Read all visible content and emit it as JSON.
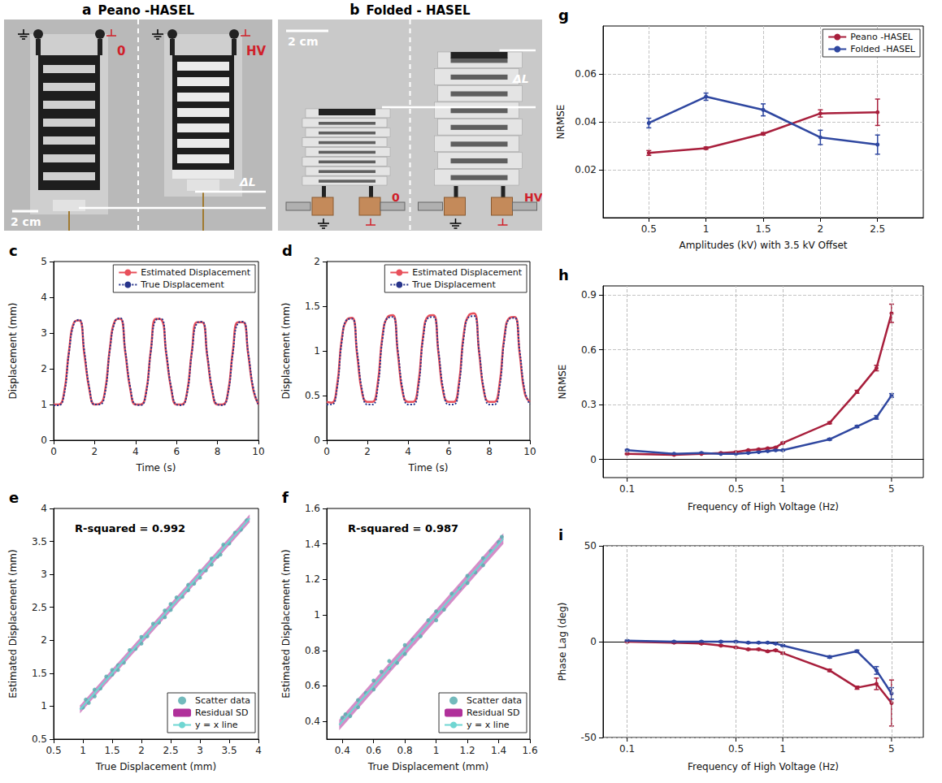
{
  "photos": [
    {
      "letter": "a",
      "title": "Peano -HASEL",
      "type": "peano",
      "low_voltage": "0",
      "high_voltage": "HV",
      "displacement": "ΔL",
      "scale_bar": "2 cm"
    },
    {
      "letter": "b",
      "title": "Folded - HASEL",
      "type": "folded",
      "low_voltage": "0",
      "high_voltage": "HV",
      "displacement": "ΔL",
      "scale_bar": "2 cm"
    }
  ],
  "chart_data": [
    {
      "letter": "c",
      "type": "line",
      "x_label": "Time (s)",
      "y_label": "Displacement (mm)",
      "legend": "upper right",
      "grid": false,
      "x": [
        0,
        0.25,
        0.5,
        0.75,
        1,
        1.25,
        1.5,
        1.75,
        2,
        2.25,
        2.5,
        2.75,
        3,
        3.25,
        3.5,
        3.75,
        4,
        4.25,
        4.5,
        4.75,
        5,
        5.25,
        5.5,
        5.75,
        6,
        6.25,
        6.5,
        6.75,
        7,
        7.25,
        7.5,
        7.75,
        8,
        8.25,
        8.5,
        8.75,
        9,
        9.25,
        9.5,
        9.75,
        10
      ],
      "xlim": [
        0,
        10
      ],
      "xticks": [
        0,
        2,
        4,
        6,
        8,
        10
      ],
      "ylim": [
        0,
        5
      ],
      "yticks": [
        0,
        1,
        2,
        3,
        4,
        5
      ],
      "series": [
        {
          "name": "Estimated Displacement",
          "color": "#e8505b",
          "line_style": "solid",
          "values": [
            1.0,
            1.0,
            1.3,
            2.5,
            3.3,
            3.35,
            2.4,
            1.4,
            1.0,
            1.02,
            1.35,
            2.6,
            3.35,
            3.4,
            2.45,
            1.4,
            1.0,
            1.0,
            1.3,
            2.55,
            3.4,
            3.38,
            2.4,
            1.4,
            1.0,
            1.0,
            1.3,
            2.5,
            3.3,
            3.3,
            2.35,
            1.35,
            1.0,
            1.0,
            1.3,
            2.5,
            3.3,
            3.3,
            2.4,
            1.4,
            1.0
          ]
        },
        {
          "name": "True Displacement",
          "color": "#27348b",
          "line_style": "dotted",
          "values": [
            0.98,
            0.98,
            1.25,
            2.45,
            3.28,
            3.37,
            2.48,
            1.45,
            1.0,
            1.0,
            1.3,
            2.55,
            3.33,
            3.42,
            2.5,
            1.45,
            1.0,
            0.98,
            1.27,
            2.5,
            3.37,
            3.4,
            2.45,
            1.45,
            1.0,
            0.98,
            1.27,
            2.45,
            3.28,
            3.32,
            2.4,
            1.4,
            1.0,
            0.98,
            1.27,
            2.45,
            3.28,
            3.32,
            2.45,
            1.45,
            0.98
          ]
        }
      ]
    },
    {
      "letter": "d",
      "type": "line",
      "x_label": "Time (s)",
      "y_label": "Displacement (mm)",
      "legend": "upper right",
      "grid": false,
      "x": [
        0,
        0.25,
        0.5,
        0.75,
        1,
        1.25,
        1.5,
        1.75,
        2,
        2.25,
        2.5,
        2.75,
        3,
        3.25,
        3.5,
        3.75,
        4,
        4.25,
        4.5,
        4.75,
        5,
        5.25,
        5.5,
        5.75,
        6,
        6.25,
        6.5,
        6.75,
        7,
        7.25,
        7.5,
        7.75,
        8,
        8.25,
        8.5,
        8.75,
        9,
        9.25,
        9.5,
        9.75,
        10
      ],
      "xlim": [
        0,
        10
      ],
      "xticks": [
        0,
        2,
        4,
        6,
        8,
        10
      ],
      "ylim": [
        0,
        2
      ],
      "yticks": [
        0,
        0.5,
        1,
        1.5,
        2
      ],
      "series": [
        {
          "name": "Estimated Displacement",
          "color": "#e8505b",
          "line_style": "solid",
          "values": [
            0.43,
            0.42,
            0.6,
            1.15,
            1.35,
            1.37,
            0.95,
            0.52,
            0.43,
            0.43,
            0.62,
            1.18,
            1.38,
            1.4,
            0.97,
            0.52,
            0.43,
            0.43,
            0.62,
            1.18,
            1.39,
            1.4,
            0.97,
            0.52,
            0.43,
            0.43,
            0.63,
            1.2,
            1.4,
            1.42,
            0.98,
            0.53,
            0.43,
            0.43,
            0.62,
            1.17,
            1.37,
            1.38,
            0.96,
            0.52,
            0.43
          ]
        },
        {
          "name": "True Displacement",
          "color": "#27348b",
          "line_style": "dotted",
          "values": [
            0.4,
            0.4,
            0.57,
            1.12,
            1.35,
            1.36,
            0.98,
            0.55,
            0.4,
            0.4,
            0.58,
            1.14,
            1.37,
            1.38,
            1.0,
            0.55,
            0.4,
            0.4,
            0.58,
            1.15,
            1.37,
            1.38,
            1.0,
            0.55,
            0.4,
            0.4,
            0.59,
            1.16,
            1.38,
            1.39,
            1.0,
            0.55,
            0.4,
            0.4,
            0.58,
            1.14,
            1.36,
            1.37,
            0.99,
            0.55,
            0.4
          ]
        }
      ]
    },
    {
      "letter": "e",
      "type": "scatter",
      "x_label": "True Displacement (mm)",
      "y_label": "Estimated Displacement (mm)",
      "annotation": "R-squared = 0.992",
      "legend": "lower right",
      "grid": false,
      "xlim": [
        0.5,
        4
      ],
      "xticks": [
        0.5,
        1,
        1.5,
        2,
        2.5,
        3,
        3.5,
        4
      ],
      "ylim": [
        0.5,
        4
      ],
      "yticks": [
        0.5,
        1,
        1.5,
        2,
        2.5,
        3,
        3.5,
        4
      ],
      "series": [
        {
          "name": "Scatter data",
          "type": "scatter",
          "color": "#5aaeb0",
          "marker": "circle",
          "x": [
            1.0,
            1.05,
            1.1,
            1.2,
            1.3,
            1.4,
            1.5,
            1.6,
            1.7,
            1.8,
            1.9,
            2.0,
            2.1,
            2.2,
            2.3,
            2.4,
            2.5,
            2.6,
            2.7,
            2.8,
            2.9,
            3.0,
            3.1,
            3.2,
            3.3,
            3.4,
            3.5,
            3.6,
            3.7,
            3.8,
            1.2,
            1.6,
            2.0,
            2.4,
            2.8,
            3.2,
            3.35,
            1.5,
            2.5,
            3.0
          ],
          "values": [
            0.98,
            1.1,
            1.05,
            1.25,
            1.27,
            1.45,
            1.48,
            1.62,
            1.66,
            1.85,
            1.87,
            2.05,
            2.06,
            2.25,
            2.27,
            2.45,
            2.46,
            2.65,
            2.66,
            2.84,
            2.86,
            3.05,
            3.06,
            3.24,
            3.27,
            3.45,
            3.47,
            3.63,
            3.68,
            3.82,
            1.15,
            1.55,
            1.95,
            2.35,
            2.76,
            3.15,
            3.3,
            1.55,
            2.55,
            2.95
          ]
        },
        {
          "name": "Residual SD",
          "type": "band",
          "color": "#b0309a",
          "x": [
            0.95,
            3.85
          ],
          "lower": [
            0.89,
            3.79
          ],
          "upper": [
            1.01,
            3.91
          ]
        },
        {
          "name": "y = x line",
          "type": "line",
          "color": "#6fd6d2",
          "line_style": "solid",
          "x": [
            0.95,
            3.85
          ],
          "values": [
            0.95,
            3.85
          ]
        }
      ]
    },
    {
      "letter": "f",
      "type": "scatter",
      "x_label": "True Displacement (mm)",
      "y_label": "Estimated Displacement (mm)",
      "annotation": "R-squared = 0.987",
      "legend": "lower right",
      "grid": false,
      "xlim": [
        0.3,
        1.6
      ],
      "xticks": [
        0.4,
        0.6,
        0.8,
        1,
        1.2,
        1.4,
        1.6
      ],
      "ylim": [
        0.3,
        1.6
      ],
      "yticks": [
        0.4,
        0.6,
        0.8,
        1,
        1.2,
        1.4,
        1.6
      ],
      "series": [
        {
          "name": "Scatter data",
          "type": "scatter",
          "color": "#5aaeb0",
          "marker": "circle",
          "x": [
            0.4,
            0.42,
            0.45,
            0.5,
            0.55,
            0.6,
            0.65,
            0.7,
            0.75,
            0.8,
            0.85,
            0.9,
            0.95,
            1.0,
            1.05,
            1.1,
            1.15,
            1.2,
            1.25,
            1.3,
            1.35,
            1.4,
            1.42,
            0.6,
            0.8,
            1.0,
            1.2,
            1.3,
            0.7,
            0.5
          ],
          "values": [
            0.42,
            0.44,
            0.43,
            0.52,
            0.56,
            0.58,
            0.68,
            0.7,
            0.73,
            0.83,
            0.86,
            0.88,
            0.97,
            1.02,
            1.03,
            1.12,
            1.15,
            1.22,
            1.24,
            1.32,
            1.36,
            1.41,
            1.44,
            0.63,
            0.78,
            0.97,
            1.18,
            1.28,
            0.74,
            0.48
          ]
        },
        {
          "name": "Residual SD",
          "type": "band",
          "color": "#b0309a",
          "x": [
            0.38,
            1.43
          ],
          "lower": [
            0.35,
            1.4
          ],
          "upper": [
            0.41,
            1.46
          ]
        },
        {
          "name": "y = x line",
          "type": "line",
          "color": "#6fd6d2",
          "line_style": "solid",
          "x": [
            0.38,
            1.43
          ],
          "values": [
            0.38,
            1.43
          ]
        }
      ]
    },
    {
      "letter": "g",
      "type": "line",
      "x_label": "Amplitudes (kV) with 3.5 kV Offset",
      "y_label": "NRMSE",
      "legend": "upper right",
      "grid": true,
      "x": [
        0.5,
        1,
        1.5,
        2,
        2.5
      ],
      "xlim": [
        0.1,
        2.9
      ],
      "xticks": [
        0.5,
        1,
        1.5,
        2,
        2.5
      ],
      "ylim": [
        0,
        0.08
      ],
      "yticks": [
        0.02,
        0.04,
        0.06
      ],
      "series": [
        {
          "name": "Peano -HASEL",
          "color": "#a81f3c",
          "marker": "circle",
          "values": [
            0.027,
            0.029,
            0.035,
            0.0435,
            0.044
          ],
          "errors": [
            0.001,
            0.0005,
            0.0005,
            0.0015,
            0.0055
          ]
        },
        {
          "name": "Folded -HASEL",
          "color": "#2f47a0",
          "marker": "circle",
          "values": [
            0.0395,
            0.0505,
            0.045,
            0.0335,
            0.0305
          ],
          "errors": [
            0.002,
            0.0015,
            0.0025,
            0.003,
            0.004
          ]
        }
      ]
    },
    {
      "letter": "h",
      "type": "line",
      "log": "x",
      "x_label": "Frequency of High Voltage (Hz)",
      "y_label": "NRMSE",
      "grid": true,
      "x": [
        0.1,
        0.2,
        0.3,
        0.4,
        0.5,
        0.6,
        0.7,
        0.8,
        0.9,
        1,
        2,
        3,
        4,
        5
      ],
      "xlim": [
        0.07,
        8
      ],
      "xticks": [
        0.1,
        0.5,
        1,
        5
      ],
      "ylim": [
        -0.1,
        0.95
      ],
      "yticks": [
        0,
        0.3,
        0.6,
        0.9
      ],
      "series": [
        {
          "name": "Peano -HASEL",
          "color": "#a81f3c",
          "marker": "circle",
          "values": [
            0.03,
            0.025,
            0.03,
            0.035,
            0.04,
            0.05,
            0.055,
            0.06,
            0.065,
            0.09,
            0.2,
            0.37,
            0.5,
            0.8
          ],
          "errors": [
            0.003,
            0.002,
            0.002,
            0.002,
            0.002,
            0.003,
            0.003,
            0.003,
            0.003,
            0.004,
            0.005,
            0.008,
            0.015,
            0.05
          ]
        },
        {
          "name": "Folded -HASEL",
          "color": "#2f47a0",
          "marker": "circle",
          "values": [
            0.05,
            0.03,
            0.035,
            0.03,
            0.03,
            0.035,
            0.04,
            0.045,
            0.05,
            0.05,
            0.11,
            0.18,
            0.23,
            0.35
          ],
          "errors": [
            0.004,
            0.002,
            0.002,
            0.002,
            0.002,
            0.002,
            0.002,
            0.003,
            0.003,
            0.003,
            0.005,
            0.006,
            0.01,
            0.01
          ]
        }
      ]
    },
    {
      "letter": "i",
      "type": "line",
      "log": "x",
      "x_label": "Frequency of High Voltage (Hz)",
      "y_label": "Phase Lag (deg)",
      "grid": true,
      "x": [
        0.1,
        0.2,
        0.3,
        0.4,
        0.5,
        0.6,
        0.7,
        0.8,
        0.9,
        1,
        2,
        3,
        4,
        5
      ],
      "xlim": [
        0.07,
        8
      ],
      "xticks": [
        0.1,
        0.5,
        1,
        5
      ],
      "ylim": [
        -50,
        50
      ],
      "yticks": [
        -50,
        0,
        50
      ],
      "series": [
        {
          "name": "Peano -HASEL",
          "color": "#a81f3c",
          "marker": "circle",
          "values": [
            0,
            -0.5,
            -1,
            -2,
            -3,
            -4,
            -4,
            -5,
            -4.5,
            -6,
            -15,
            -24,
            -22,
            -32
          ],
          "errors": [
            0.3,
            0.3,
            0.3,
            0.3,
            0.3,
            0.4,
            0.4,
            0.4,
            0.4,
            0.5,
            0.6,
            0.8,
            3,
            12
          ]
        },
        {
          "name": "Folded -HASEL",
          "color": "#2f47a0",
          "marker": "circle",
          "values": [
            0.5,
            0,
            0,
            0,
            0,
            -0.5,
            -0.5,
            -0.5,
            -1,
            -2,
            -8,
            -5,
            -15,
            -27
          ],
          "errors": [
            0.3,
            0.3,
            0.3,
            0.3,
            0.3,
            0.3,
            0.3,
            0.3,
            0.3,
            0.4,
            0.6,
            0.6,
            2,
            3
          ]
        }
      ]
    }
  ]
}
